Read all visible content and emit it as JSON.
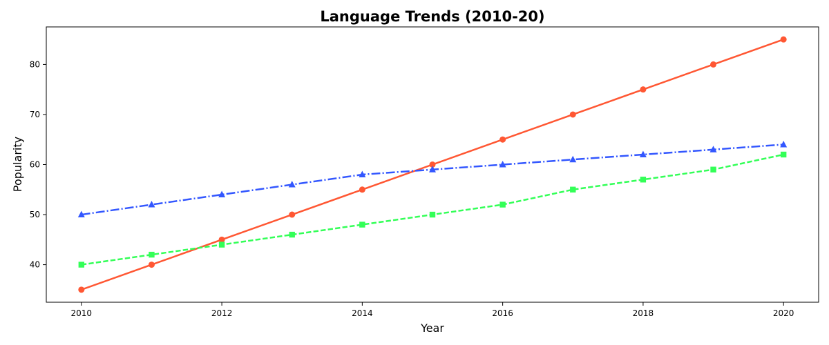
{
  "chart_data": {
    "type": "line",
    "title": "Language Trends (2010-20)",
    "xlabel": "Year",
    "ylabel": "Popularity",
    "x": [
      2010,
      2011,
      2012,
      2013,
      2014,
      2015,
      2016,
      2017,
      2018,
      2019,
      2020
    ],
    "xlim": [
      2009.5,
      2020.5
    ],
    "ylim": [
      32.5,
      87.5
    ],
    "x_ticks": [
      2010,
      2012,
      2014,
      2016,
      2018,
      2020
    ],
    "y_ticks": [
      40,
      50,
      60,
      70,
      80
    ],
    "x_tick_labels": [
      "2010",
      "2012",
      "2014",
      "2016",
      "2018",
      "2020"
    ],
    "y_tick_labels": [
      "40",
      "50",
      "60",
      "70",
      "80"
    ],
    "grid": false,
    "series": [
      {
        "color": "#FF5733",
        "line_style": "solid",
        "marker": "circle",
        "values": [
          35,
          40,
          45,
          50,
          55,
          60,
          65,
          70,
          75,
          80,
          85
        ]
      },
      {
        "color": "#33FF57",
        "line_style": "dashed",
        "marker": "square",
        "values": [
          40,
          42,
          44,
          46,
          48,
          50,
          52,
          55,
          57,
          59,
          62
        ]
      },
      {
        "color": "#3357FF",
        "line_style": "dashdot",
        "marker": "triangle",
        "values": [
          50,
          52,
          54,
          56,
          58,
          59,
          60,
          61,
          62,
          63,
          64
        ]
      }
    ]
  }
}
